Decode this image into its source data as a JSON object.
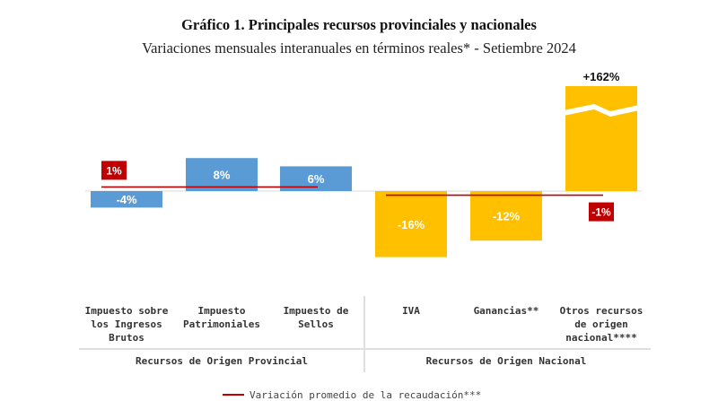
{
  "title": "Gráfico 1. Principales recursos provinciales y nacionales",
  "subtitle": "Variaciones mensuales interanuales en términos reales* - Setiembre 2024",
  "legend": {
    "label": "Variación promedio de la recaudación***"
  },
  "colors": {
    "provincial": "#5b9bd5",
    "nacional": "#ffc000",
    "average": "#c00000",
    "label_text": "#ffffff"
  },
  "chart_data": {
    "type": "bar",
    "categories": [
      [
        "Impuesto sobre",
        "los Ingresos",
        "Brutos"
      ],
      [
        "Impuesto",
        "Patrimoniales"
      ],
      [
        "Impuesto de",
        "Sellos"
      ],
      [
        "IVA"
      ],
      [
        "Ganancias**"
      ],
      [
        "Otros recursos",
        "de origen",
        "nacional****"
      ]
    ],
    "values": [
      -4,
      8,
      6,
      -16,
      -12,
      162
    ],
    "value_labels": [
      "-4%",
      "8%",
      "6%",
      "-16%",
      "-12%",
      "+162%"
    ],
    "groups": [
      {
        "label": "Recursos de Origen Provincial",
        "categories": [
          0,
          1,
          2
        ],
        "average": 1,
        "average_label": "1%"
      },
      {
        "label": "Recursos de Origen Nacional",
        "categories": [
          3,
          4,
          5
        ],
        "average": -1,
        "average_label": "-1%"
      }
    ],
    "broken_axis_categories": [
      5
    ]
  }
}
